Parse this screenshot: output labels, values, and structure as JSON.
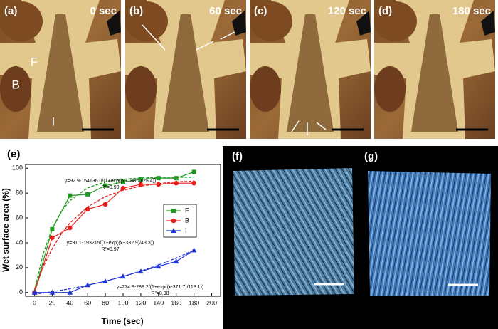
{
  "panels": [
    {
      "label": "(a)",
      "time": "0 sec"
    },
    {
      "label": "(b)",
      "time": "60 sec"
    },
    {
      "label": "(c)",
      "time": "120 sec"
    },
    {
      "label": "(d)",
      "time": "180 sec"
    }
  ],
  "region_labels": [
    "F",
    "B",
    "I"
  ],
  "chart_label": "(e)",
  "image_labels": [
    "(f)",
    "(g)"
  ],
  "chart_data": {
    "type": "line",
    "x_label": "Time (sec)",
    "y_label": "Wet surface area (%)",
    "x": [
      0,
      20,
      40,
      60,
      80,
      100,
      120,
      140,
      160,
      180
    ],
    "series": [
      {
        "name": "F",
        "color": "#1e9a1e",
        "marker": "square",
        "values": [
          0,
          51,
          78,
          79,
          86,
          89,
          91,
          92,
          92,
          97
        ]
      },
      {
        "name": "B",
        "color": "#e8201c",
        "marker": "circle",
        "values": [
          0,
          44,
          52,
          67,
          71,
          84,
          87,
          87,
          88,
          88
        ]
      },
      {
        "name": "I",
        "color": "#2236d8",
        "marker": "triangle",
        "values": [
          0,
          0,
          0,
          6,
          9,
          13,
          17,
          21,
          25,
          34
        ]
      }
    ],
    "fits": [
      {
        "color": "#1e9a1e",
        "x": [
          0,
          10,
          20,
          30,
          40,
          60,
          80,
          100,
          120,
          140,
          160,
          180
        ],
        "values": [
          1.5,
          31.6,
          51.5,
          64.9,
          73.9,
          84.2,
          89.0,
          91.1,
          92.1,
          92.5,
          92.7,
          92.8
        ]
      },
      {
        "color": "#e8201c",
        "x": [
          0,
          10,
          20,
          30,
          40,
          60,
          80,
          100,
          120,
          140,
          160,
          180
        ],
        "values": [
          2.7,
          20.8,
          35.3,
          46.8,
          55.9,
          68.9,
          77.2,
          82.3,
          85.6,
          87.6,
          88.9,
          89.7
        ]
      },
      {
        "color": "#2236d8",
        "x": [
          0,
          20,
          40,
          60,
          80,
          100,
          120,
          140,
          160,
          180
        ],
        "values": [
          -1.5,
          0.6,
          3.0,
          5.8,
          9.1,
          12.9,
          17.2,
          22.1,
          27.7,
          34.1
        ]
      }
    ],
    "annotations": [
      {
        "equation": "y=92.9-154136.0/(1+exp((x+188.7)/25.4))",
        "r2": "R²=0.99"
      },
      {
        "equation": "y=91.1-193215/(1+exp((x+332.9)/43.3))",
        "r2": "R²=0.97"
      },
      {
        "equation": "y=274.8-288.2/(1+exp((x-371.7)/118.1))",
        "r2": "R²=0.98"
      }
    ],
    "xlim": [
      -10,
      210
    ],
    "ylim": [
      -3,
      103
    ],
    "xticks": [
      0,
      20,
      40,
      60,
      80,
      100,
      120,
      140,
      160,
      180,
      200
    ],
    "yticks": [
      0,
      20,
      40,
      60,
      80,
      100
    ],
    "legend": "right"
  }
}
